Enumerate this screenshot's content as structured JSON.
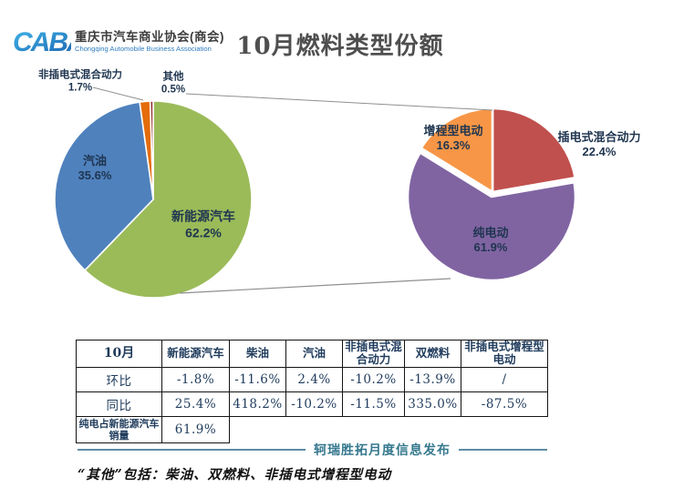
{
  "header": {
    "logo": {
      "mark": "CABA",
      "org_cn": "重庆市汽车商业协会(商会)",
      "org_en": "Chongqing Automobile Business Association"
    },
    "title": "10月燃料类型份额"
  },
  "chart_data": [
    {
      "type": "pie",
      "name": "fuel-type-share",
      "unit": "%",
      "legend_position": "none",
      "slices": [
        {
          "label": "新能源汽车",
          "value": 62.2,
          "pct_text": "62.2%",
          "color": "#9BBB59"
        },
        {
          "label": "汽油",
          "value": 35.6,
          "pct_text": "35.6%",
          "color": "#4F81BD"
        },
        {
          "label": "非插电式混合动力",
          "value": 1.7,
          "pct_text": "1.7%",
          "color": "#E46C0A"
        },
        {
          "label": "其他",
          "value": 0.5,
          "pct_text": "0.5%",
          "color": "#963634"
        }
      ]
    },
    {
      "type": "pie",
      "name": "nev-breakdown",
      "unit": "%",
      "legend_position": "none",
      "slices": [
        {
          "label": "插电式混合动力",
          "value": 22.4,
          "pct_text": "22.4%",
          "color": "#C0504D"
        },
        {
          "label": "纯电动",
          "value": 61.9,
          "pct_text": "61.9%",
          "color": "#8064A2"
        },
        {
          "label": "增程型电动",
          "value": 16.3,
          "pct_text": "16.3%",
          "color": "#F79646"
        }
      ]
    }
  ],
  "table": {
    "header": [
      "10月",
      "新能源汽车",
      "柴油",
      "汽油",
      "非插电式混合动力",
      "双燃料",
      "非插电式增程型电动"
    ],
    "rows": [
      {
        "label": "环比",
        "values": [
          "-1.8%",
          "-11.6%",
          "2.4%",
          "-10.2%",
          "-13.9%",
          "/"
        ]
      },
      {
        "label": "同比",
        "values": [
          "25.4%",
          "418.2%",
          "-10.2%",
          "-11.5%",
          "335.0%",
          "-87.5%"
        ]
      },
      {
        "label": "纯电占新能源汽车销量",
        "values": [
          "61.9%"
        ]
      }
    ]
  },
  "footer": {
    "publisher": "轲瑞胜拓月度信息发布",
    "note": "“其他”包括：柴油、双燃料、非插电式增程型电动"
  }
}
